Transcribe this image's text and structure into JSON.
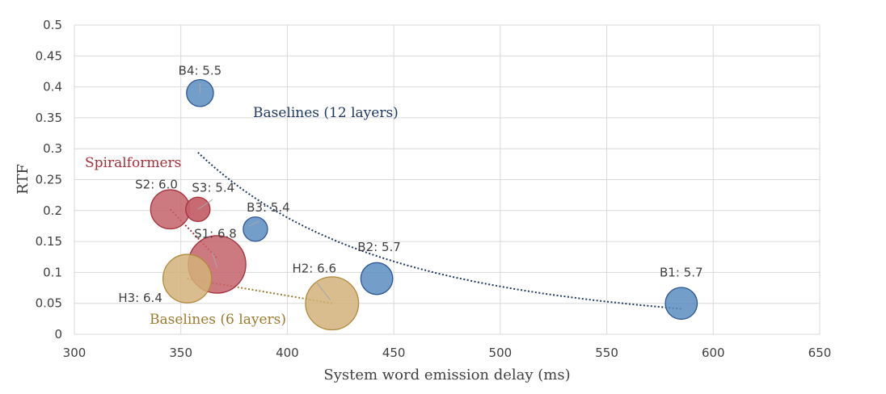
{
  "chart_data": {
    "type": "scatter",
    "title": "",
    "xlabel": "System word emission delay (ms)",
    "ylabel": "RTF",
    "xlim": [
      300,
      650
    ],
    "ylim": [
      0,
      0.5
    ],
    "xticks": [
      300,
      350,
      400,
      450,
      500,
      550,
      600,
      650
    ],
    "yticks": [
      0,
      0.05,
      0.1,
      0.15,
      0.2,
      0.25,
      0.3,
      0.35,
      0.4,
      0.45,
      0.5
    ],
    "xtick_labels": [
      "300",
      "350",
      "400",
      "450",
      "500",
      "550",
      "600",
      "650"
    ],
    "ytick_labels": [
      "0",
      "0.05",
      "0.1",
      "0.15",
      "0.2",
      "0.25",
      "0.3",
      "0.35",
      "0.4",
      "0.45",
      "0.5"
    ],
    "grid": true,
    "series": [
      {
        "name": "Baselines (12 layers)",
        "color": "#2f5597",
        "fill": "#5b8dbf",
        "points": [
          {
            "label": "B1: 5.7",
            "x": 585,
            "y": 0.05,
            "bleu": 5.7
          },
          {
            "label": "B2: 5.7",
            "x": 442,
            "y": 0.09,
            "bleu": 5.7
          },
          {
            "label": "B3: 5.4",
            "x": 385,
            "y": 0.17,
            "bleu": 5.4
          },
          {
            "label": "B4: 5.5",
            "x": 359,
            "y": 0.39,
            "bleu": 5.5
          }
        ]
      },
      {
        "name": "Spiralformers",
        "color": "#a5303a",
        "fill": "#c4626a",
        "points": [
          {
            "label": "S1: 6.8",
            "x": 367,
            "y": 0.113,
            "bleu": 6.8
          },
          {
            "label": "S2: 6.0",
            "x": 345,
            "y": 0.202,
            "bleu": 6.0
          },
          {
            "label": "S3: 5.4",
            "x": 358,
            "y": 0.202,
            "bleu": 5.4
          }
        ]
      },
      {
        "name": "Baselines (6 layers)",
        "color": "#b08a3e",
        "fill": "#d2b27a",
        "points": [
          {
            "label": "H2: 6.6",
            "x": 421,
            "y": 0.05,
            "bleu": 6.6
          },
          {
            "label": "H3: 6.4",
            "x": 353,
            "y": 0.09,
            "bleu": 6.4
          }
        ]
      }
    ],
    "trendlines": [
      {
        "series": "Baselines (12 layers)",
        "style": "dotted",
        "color": "#1f3864"
      },
      {
        "series": "Spiralformers",
        "style": "dotted",
        "color": "#a5303a"
      },
      {
        "series": "Baselines (6 layers)",
        "style": "dotted",
        "color": "#9c7a2e"
      }
    ],
    "group_labels": [
      {
        "text": "Baselines (12 layers)",
        "color": "#1f3864"
      },
      {
        "text": "Spiralformers",
        "color": "#a5303a"
      },
      {
        "text": "Baselines (6 layers)",
        "color": "#9c7a2e"
      }
    ]
  }
}
